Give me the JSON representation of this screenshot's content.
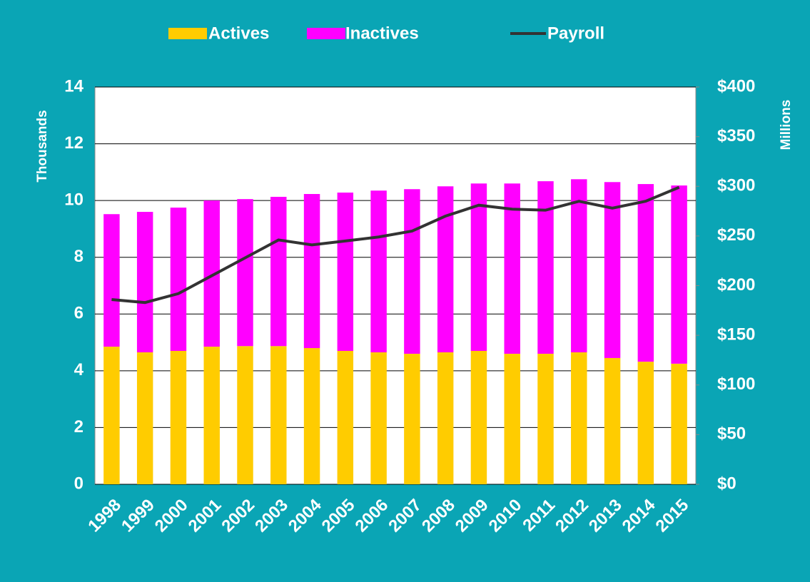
{
  "chart_data": {
    "type": "bar",
    "stacked": true,
    "categories": [
      "1998",
      "1999",
      "2000",
      "2001",
      "2002",
      "2003",
      "2004",
      "2005",
      "2006",
      "2007",
      "2008",
      "2009",
      "2010",
      "2011",
      "2012",
      "2013",
      "2014",
      "2015"
    ],
    "series": [
      {
        "name": "Actives",
        "type": "bar",
        "color": "#ffcc00",
        "values": [
          4.85,
          4.65,
          4.7,
          4.85,
          4.87,
          4.87,
          4.8,
          4.7,
          4.65,
          4.6,
          4.65,
          4.7,
          4.6,
          4.6,
          4.65,
          4.45,
          4.32,
          4.25
        ]
      },
      {
        "name": "Inactives",
        "type": "bar",
        "color": "#ff00ff",
        "values": [
          4.67,
          4.95,
          5.05,
          5.15,
          5.18,
          5.26,
          5.43,
          5.58,
          5.7,
          5.8,
          5.85,
          5.9,
          6.0,
          6.08,
          6.1,
          6.2,
          6.26,
          6.28
        ]
      },
      {
        "name": "Payroll",
        "type": "line",
        "axis": "y2",
        "color": "#333333",
        "values": [
          186,
          183,
          192,
          210,
          228,
          246,
          241,
          245,
          249,
          255,
          270,
          281,
          277,
          276,
          285,
          278,
          285,
          299
        ]
      }
    ],
    "ylabel": "Thousands",
    "y2label": "Millions",
    "ylim": [
      0,
      14
    ],
    "yticks": [
      0,
      2,
      4,
      6,
      8,
      10,
      12,
      14
    ],
    "y2lim": [
      0,
      400
    ],
    "y2ticks": [
      {
        "value": 0,
        "label": "$0"
      },
      {
        "value": 50,
        "label": "$50"
      },
      {
        "value": 100,
        "label": "$100"
      },
      {
        "value": 150,
        "label": "$150"
      },
      {
        "value": 200,
        "label": "$200"
      },
      {
        "value": 250,
        "label": "$250"
      },
      {
        "value": 300,
        "label": "$300"
      },
      {
        "value": 350,
        "label": "$350"
      },
      {
        "value": 400,
        "label": "$400"
      }
    ],
    "grid": true,
    "legend": "top"
  }
}
